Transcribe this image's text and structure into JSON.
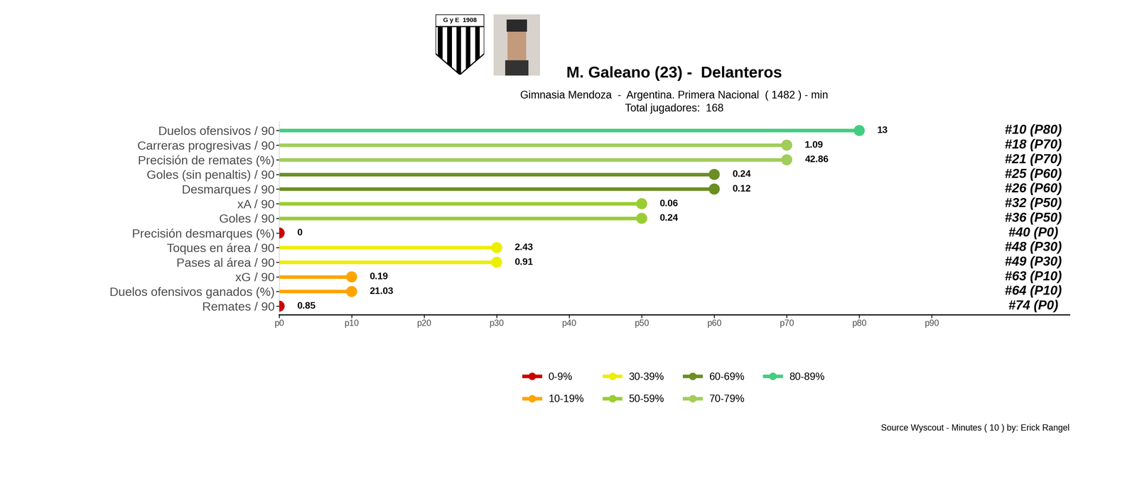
{
  "chart_data": {
    "type": "lollipop",
    "orientation": "horizontal",
    "title": "M. Galeano (23) -  Delanteros",
    "subtitle": [
      "Gimnasia Mendoza  -  Argentina. Primera Nacional  ( 1482 ) - min",
      "Total jugadores:  168"
    ],
    "badge_text": "G y E  1908",
    "caption": "Source Wyscout - Minutes ( 10 ) by: Erick Rangel",
    "categories": [
      "Duelos ofensivos / 90",
      "Carreras progresivas / 90",
      "Precisión de remates (%)",
      "Goles (sin penaltis) / 90",
      "Desmarques / 90",
      "xA / 90",
      "Goles / 90",
      "Precisión desmarques (%)",
      "Toques en área / 90",
      "Pases al área / 90",
      "xG / 90",
      "Duelos ofensivos ganados (%)",
      "Remates / 90"
    ],
    "values": [
      80,
      70,
      70,
      60,
      60,
      50,
      50,
      0,
      30,
      30,
      10,
      10,
      0
    ],
    "metric_values": [
      13,
      1.09,
      42.86,
      0.24,
      0.12,
      0.06,
      0.24,
      0,
      2.43,
      0.91,
      0.19,
      21.03,
      0.85
    ],
    "rank_labels": [
      "#10 (P80)",
      "#18 (P70)",
      "#21 (P70)",
      "#25 (P60)",
      "#26 (P60)",
      "#32 (P50)",
      "#36 (P50)",
      "#40 (P0)",
      "#48 (P30)",
      "#49 (P30)",
      "#63 (P10)",
      "#64 (P10)",
      "#74 (P0)"
    ],
    "colors": [
      "#43CD80",
      "#A2CD5A",
      "#A2CD5A",
      "#6B8E23",
      "#6B8E23",
      "#9ACD32",
      "#9ACD32",
      "#CD0000",
      "#EEEE00",
      "#EEEE00",
      "#FFA500",
      "#FFA500",
      "#CD0000"
    ],
    "xlim": [
      0,
      109
    ],
    "xticks": [
      {
        "value": 0,
        "label": "p0"
      },
      {
        "value": 10,
        "label": "p10"
      },
      {
        "value": 20,
        "label": "p20"
      },
      {
        "value": 30,
        "label": "p30"
      },
      {
        "value": 40,
        "label": "p40"
      },
      {
        "value": 50,
        "label": "p50"
      },
      {
        "value": 60,
        "label": "p60"
      },
      {
        "value": 70,
        "label": "p70"
      },
      {
        "value": 80,
        "label": "p80"
      },
      {
        "value": 90,
        "label": "p90"
      }
    ],
    "legend": "center",
    "legend_items": [
      {
        "name": "0-9%",
        "color": "#CD0000"
      },
      {
        "name": "10-19%",
        "color": "#FFA500"
      },
      {
        "name": "30-39%",
        "color": "#EEEE00"
      },
      {
        "name": "50-59%",
        "color": "#9ACD32"
      },
      {
        "name": "60-69%",
        "color": "#6B8E23"
      },
      {
        "name": "70-79%",
        "color": "#A2CD5A"
      },
      {
        "name": "80-89%",
        "color": "#43CD80"
      }
    ]
  }
}
